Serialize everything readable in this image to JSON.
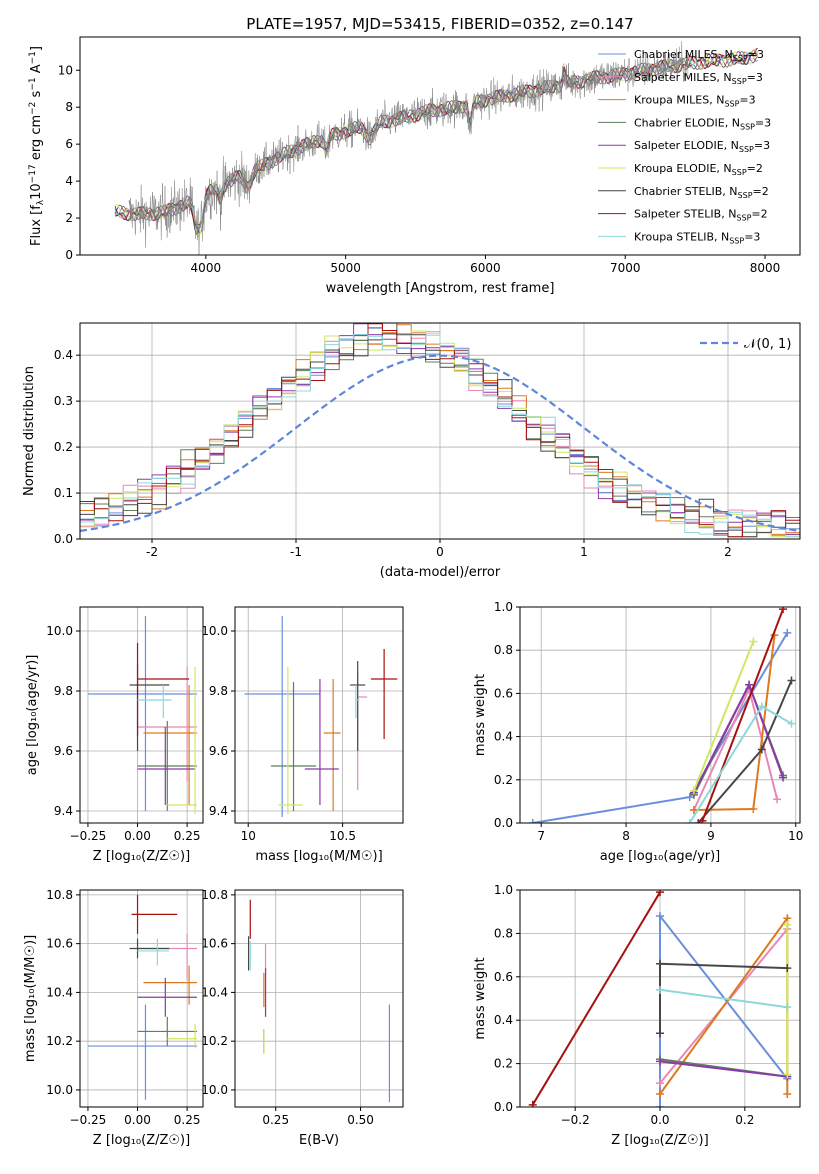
{
  "figure_title": "PLATE=1957, MJD=53415, FIBERID=0352, z=0.147",
  "colors": {
    "Chabrier MILES": "#6a8fdc",
    "Salpeter MILES": "#e888b4",
    "Kroupa MILES": "#dd7a20",
    "Chabrier ELODIE": "#5f7f5f",
    "Salpeter ELODIE": "#8b3aa8",
    "Kroupa ELODIE": "#cfe860",
    "Chabrier STELIB": "#474747",
    "Salpeter STELIB": "#a81010",
    "Kroupa STELIB": "#8cd8dc"
  },
  "chart_data": [
    {
      "id": "spectrum",
      "type": "line",
      "title": "PLATE=1957, MJD=53415, FIBERID=0352, z=0.147",
      "xlabel": "wavelength [Angstrom, rest frame]",
      "ylabel_parts": {
        "a": "Flux [f",
        "b": "λ",
        "c": "10",
        "d": "−17",
        "e": " erg cm",
        "f": "−2",
        "g": " s",
        "h": "−1",
        "i": " A",
        "j": "−1",
        "k": "]"
      },
      "xlim": [
        3100,
        8250
      ],
      "ylim": [
        0,
        11.8
      ],
      "xticks": [
        4000,
        5000,
        6000,
        7000,
        8000
      ],
      "yticks": [
        0,
        2,
        4,
        6,
        8,
        10
      ],
      "legend": [
        {
          "label": "Chabrier MILES, N",
          "sub": "SSP",
          "tail": "=3"
        },
        {
          "label": "Salpeter MILES, N",
          "sub": "SSP",
          "tail": "=3"
        },
        {
          "label": "Kroupa MILES, N",
          "sub": "SSP",
          "tail": "=3"
        },
        {
          "label": "Chabrier ELODIE, N",
          "sub": "SSP",
          "tail": "=3"
        },
        {
          "label": "Salpeter ELODIE, N",
          "sub": "SSP",
          "tail": "=3"
        },
        {
          "label": "Kroupa ELODIE, N",
          "sub": "SSP",
          "tail": "=2"
        },
        {
          "label": "Chabrier STELIB, N",
          "sub": "SSP",
          "tail": "=2"
        },
        {
          "label": "Salpeter STELIB, N",
          "sub": "SSP",
          "tail": "=2"
        },
        {
          "label": "Kroupa STELIB, N",
          "sub": "SSP",
          "tail": "=3"
        }
      ],
      "legend_placement": "upper right",
      "continuum_points": [
        [
          3300,
          2.4
        ],
        [
          3500,
          2.2
        ],
        [
          3700,
          2.3
        ],
        [
          3900,
          2.9
        ],
        [
          4000,
          3.3
        ],
        [
          4200,
          4.1
        ],
        [
          4400,
          4.8
        ],
        [
          4600,
          5.6
        ],
        [
          4800,
          6.2
        ],
        [
          5000,
          6.7
        ],
        [
          5200,
          7.1
        ],
        [
          5400,
          7.4
        ],
        [
          5600,
          7.8
        ],
        [
          5800,
          8.0
        ],
        [
          6000,
          8.4
        ],
        [
          6200,
          8.7
        ],
        [
          6400,
          9.0
        ],
        [
          6600,
          9.3
        ],
        [
          6800,
          9.6
        ],
        [
          7000,
          9.8
        ],
        [
          7200,
          10.1
        ],
        [
          7400,
          10.3
        ],
        [
          7600,
          10.5
        ],
        [
          7800,
          10.6
        ],
        [
          8000,
          10.9
        ]
      ],
      "model_range": [
        3350,
        7950
      ],
      "data_range": [
        3450,
        7450
      ]
    },
    {
      "id": "residual_hist",
      "type": "histogram",
      "xlabel": "(data-model)/error",
      "ylabel": "Normed distribution",
      "xlim": [
        -2.5,
        2.5
      ],
      "ylim": [
        0,
        0.47
      ],
      "xticks": [
        -2,
        -1,
        0,
        1,
        2
      ],
      "yticks": [
        0.0,
        0.1,
        0.2,
        0.3,
        0.4
      ],
      "bin_width": 0.1,
      "legend": "𝒩(0, 1)",
      "legend_placement": "upper right",
      "reference_curve": {
        "name": "𝒩(0, 1)",
        "mean": 0,
        "sigma": 1
      },
      "approx_shape": {
        "peak_center": -0.35,
        "peak_height": 0.42,
        "sigma": 0.92
      }
    },
    {
      "id": "age_vs_Z",
      "type": "errorbar",
      "xlabel": "Z [log₁₀(Z/Z☉)]",
      "ylabel": "age  [log₁₀(age/yr)]",
      "xlim": [
        -0.29,
        0.33
      ],
      "ylim": [
        9.36,
        10.08
      ],
      "xticks": [
        -0.25,
        0.0,
        0.25
      ],
      "xticklabels": [
        "−0.25",
        "0.00",
        "0.25"
      ],
      "yticks": [
        9.4,
        9.6,
        9.8,
        10.0
      ],
      "points": [
        {
          "model": "Chabrier MILES",
          "x": 0.04,
          "xerr": [
            0.29,
            0.26
          ],
          "y": 9.79,
          "yerr": [
            0.39,
            0.26
          ]
        },
        {
          "model": "Salpeter MILES",
          "x": 0.25,
          "xerr": [
            0.25,
            0.05
          ],
          "y": 9.68,
          "yerr": [
            0.18,
            0.2
          ]
        },
        {
          "model": "Kroupa MILES",
          "x": 0.26,
          "xerr": [
            0.23,
            0.04
          ],
          "y": 9.66,
          "yerr": [
            0.24,
            0.16
          ]
        },
        {
          "model": "Chabrier ELODIE",
          "x": 0.15,
          "xerr": [
            0.15,
            0.15
          ],
          "y": 9.55,
          "yerr": [
            0.15,
            0.15
          ]
        },
        {
          "model": "Salpeter ELODIE",
          "x": 0.14,
          "xerr": [
            0.14,
            0.15
          ],
          "y": 9.54,
          "yerr": [
            0.12,
            0.14
          ]
        },
        {
          "model": "Kroupa ELODIE",
          "x": 0.29,
          "xerr": [
            0.14,
            0.01
          ],
          "y": 9.42,
          "yerr": [
            0.03,
            0.46
          ]
        },
        {
          "model": "Chabrier STELIB",
          "x": 0.0,
          "xerr": [
            0.04,
            0.16
          ],
          "y": 9.82,
          "yerr": [
            0.22,
            0.07
          ]
        },
        {
          "model": "Salpeter STELIB",
          "x": 0.0,
          "xerr": [
            0.0,
            0.26
          ],
          "y": 9.84,
          "yerr": [
            0.19,
            0.12
          ]
        },
        {
          "model": "Kroupa STELIB",
          "x": 0.13,
          "xerr": [
            0.13,
            0.04
          ],
          "y": 9.77,
          "yerr": [
            0.06,
            0.05
          ]
        }
      ]
    },
    {
      "id": "age_vs_mass",
      "type": "errorbar",
      "xlabel": "mass [log₁₀(M/M☉)]",
      "ylabel": "",
      "xlim": [
        9.93,
        10.82
      ],
      "ylim": [
        9.36,
        10.08
      ],
      "xticks": [
        10.0,
        10.5
      ],
      "yticks": [
        9.4,
        9.6,
        9.8,
        10.0
      ],
      "points": [
        {
          "model": "Chabrier MILES",
          "x": 10.18,
          "xerr": [
            0.2,
            0.2
          ],
          "y": 9.79,
          "yerr": [
            0.41,
            0.26
          ]
        },
        {
          "model": "Salpeter MILES",
          "x": 10.58,
          "xerr": [
            0.0,
            0.05
          ],
          "y": 9.78,
          "yerr": [
            0.31,
            0.08
          ]
        },
        {
          "model": "Kroupa MILES",
          "x": 10.45,
          "xerr": [
            0.05,
            0.04
          ],
          "y": 9.66,
          "yerr": [
            0.26,
            0.18
          ]
        },
        {
          "model": "Chabrier ELODIE",
          "x": 10.24,
          "xerr": [
            0.12,
            0.12
          ],
          "y": 9.55,
          "yerr": [
            0.15,
            0.28
          ]
        },
        {
          "model": "Salpeter ELODIE",
          "x": 10.38,
          "xerr": [
            0.08,
            0.1
          ],
          "y": 9.54,
          "yerr": [
            0.12,
            0.3
          ]
        },
        {
          "model": "Kroupa ELODIE",
          "x": 10.21,
          "xerr": [
            0.05,
            0.08
          ],
          "y": 9.42,
          "yerr": [
            0.03,
            0.46
          ]
        },
        {
          "model": "Chabrier STELIB",
          "x": 10.58,
          "xerr": [
            0.04,
            0.04
          ],
          "y": 9.82,
          "yerr": [
            0.22,
            0.08
          ]
        },
        {
          "model": "Salpeter STELIB",
          "x": 10.72,
          "xerr": [
            0.07,
            0.07
          ],
          "y": 9.84,
          "yerr": [
            0.2,
            0.1
          ]
        },
        {
          "model": "Kroupa STELIB",
          "x": 10.57,
          "xerr": [
            0.0,
            0.02
          ],
          "y": 9.77,
          "yerr": [
            0.06,
            0.05
          ]
        }
      ]
    },
    {
      "id": "weight_vs_age",
      "type": "line",
      "xlabel": "age  [log₁₀(age/yr)]",
      "ylabel": "mass weight",
      "xlim": [
        6.75,
        10.05
      ],
      "ylim": [
        0,
        1
      ],
      "xticks": [
        7,
        8,
        9,
        10
      ],
      "yticks": [
        0.0,
        0.2,
        0.4,
        0.6,
        0.8,
        1.0
      ],
      "series": [
        {
          "model": "Chabrier MILES",
          "x": [
            6.9,
            8.75,
            9.9
          ],
          "y": [
            0.0,
            0.12,
            0.88
          ]
        },
        {
          "model": "Salpeter MILES",
          "x": [
            8.8,
            9.45,
            9.78
          ],
          "y": [
            0.06,
            0.62,
            0.11
          ]
        },
        {
          "model": "Kroupa MILES",
          "x": [
            8.8,
            9.5,
            9.75
          ],
          "y": [
            0.06,
            0.065,
            0.87
          ]
        },
        {
          "model": "Chabrier ELODIE",
          "x": [
            8.8,
            9.45,
            9.85
          ],
          "y": [
            0.13,
            0.64,
            0.22
          ]
        },
        {
          "model": "Salpeter ELODIE",
          "x": [
            8.8,
            9.45,
            9.85
          ],
          "y": [
            0.14,
            0.64,
            0.21
          ]
        },
        {
          "model": "Kroupa ELODIE",
          "x": [
            8.8,
            9.5
          ],
          "y": [
            0.15,
            0.84
          ]
        },
        {
          "model": "Chabrier STELIB",
          "x": [
            8.85,
            9.6,
            9.95
          ],
          "y": [
            0.0,
            0.34,
            0.66
          ]
        },
        {
          "model": "Salpeter STELIB",
          "x": [
            8.9,
            9.85
          ],
          "y": [
            0.01,
            0.99
          ]
        },
        {
          "model": "Kroupa STELIB",
          "x": [
            8.75,
            9.6,
            9.95
          ],
          "y": [
            0.0,
            0.54,
            0.46
          ]
        }
      ]
    },
    {
      "id": "mass_vs_Z",
      "type": "errorbar",
      "xlabel": "Z [log₁₀(Z/Z☉)]",
      "ylabel": "mass [log₁₀(M/M☉)]",
      "xlim": [
        -0.29,
        0.33
      ],
      "ylim": [
        9.93,
        10.82
      ],
      "xticks": [
        -0.25,
        0.0,
        0.25
      ],
      "xticklabels": [
        "−0.25",
        "0.00",
        "0.25"
      ],
      "yticks": [
        10.0,
        10.2,
        10.4,
        10.6,
        10.8
      ],
      "points": [
        {
          "model": "Chabrier MILES",
          "x": 0.04,
          "xerr": [
            0.29,
            0.26
          ],
          "y": 10.18,
          "yerr": [
            0.22,
            0.17
          ]
        },
        {
          "model": "Salpeter MILES",
          "x": 0.25,
          "xerr": [
            0.25,
            0.05
          ],
          "y": 10.58,
          "yerr": [
            0.13,
            0.06
          ]
        },
        {
          "model": "Kroupa MILES",
          "x": 0.26,
          "xerr": [
            0.23,
            0.04
          ],
          "y": 10.44,
          "yerr": [
            0.09,
            0.07
          ]
        },
        {
          "model": "Chabrier ELODIE",
          "x": 0.15,
          "xerr": [
            0.15,
            0.15
          ],
          "y": 10.24,
          "yerr": [
            0.06,
            0.06
          ]
        },
        {
          "model": "Salpeter ELODIE",
          "x": 0.14,
          "xerr": [
            0.14,
            0.16
          ],
          "y": 10.38,
          "yerr": [
            0.08,
            0.08
          ]
        },
        {
          "model": "Kroupa ELODIE",
          "x": 0.29,
          "xerr": [
            0.14,
            0.01
          ],
          "y": 10.21,
          "yerr": [
            0.04,
            0.06
          ]
        },
        {
          "model": "Chabrier STELIB",
          "x": 0.0,
          "xerr": [
            0.04,
            0.16
          ],
          "y": 10.58,
          "yerr": [
            0.04,
            0.04
          ]
        },
        {
          "model": "Salpeter STELIB",
          "x": 0.0,
          "xerr": [
            0.03,
            0.2
          ],
          "y": 10.72,
          "yerr": [
            0.08,
            0.08
          ]
        },
        {
          "model": "Kroupa STELIB",
          "x": 0.1,
          "xerr": [
            0.1,
            0.06
          ],
          "y": 10.57,
          "yerr": [
            0.06,
            0.05
          ]
        }
      ]
    },
    {
      "id": "mass_vs_ebv",
      "type": "errorbar",
      "xlabel": "E(B-V)",
      "ylabel": "",
      "xlim": [
        0.13,
        0.625
      ],
      "ylim": [
        9.93,
        10.82
      ],
      "xticks": [
        0.25,
        0.5
      ],
      "xticklabels": [
        "0.25",
        "0.50"
      ],
      "yticks": [
        10.0,
        10.2,
        10.4,
        10.6,
        10.8
      ],
      "points": [
        {
          "model": "Chabrier MILES",
          "x": 0.585,
          "xerr": [
            0,
            0
          ],
          "y": 10.15,
          "yerr": [
            0.2,
            0.2
          ]
        },
        {
          "model": "Salpeter MILES",
          "x": 0.22,
          "xerr": [
            0,
            0
          ],
          "y": 10.45,
          "yerr": [
            0.15,
            0.15
          ]
        },
        {
          "model": "Kroupa MILES",
          "x": 0.215,
          "xerr": [
            0,
            0
          ],
          "y": 10.41,
          "yerr": [
            0.07,
            0.07
          ]
        },
        {
          "model": "Chabrier ELODIE",
          "x": 0.215,
          "xerr": [
            0,
            0
          ],
          "y": 10.2,
          "yerr": [
            0.05,
            0.05
          ]
        },
        {
          "model": "Salpeter ELODIE",
          "x": 0.22,
          "xerr": [
            0,
            0
          ],
          "y": 10.4,
          "yerr": [
            0.1,
            0.1
          ]
        },
        {
          "model": "Kroupa ELODIE",
          "x": 0.215,
          "xerr": [
            0,
            0
          ],
          "y": 10.2,
          "yerr": [
            0.05,
            0.05
          ]
        },
        {
          "model": "Chabrier STELIB",
          "x": 0.17,
          "xerr": [
            0,
            0
          ],
          "y": 10.56,
          "yerr": [
            0.07,
            0.07
          ]
        },
        {
          "model": "Salpeter STELIB",
          "x": 0.175,
          "xerr": [
            0,
            0
          ],
          "y": 10.7,
          "yerr": [
            0.08,
            0.08
          ]
        },
        {
          "model": "Kroupa STELIB",
          "x": 0.175,
          "xerr": [
            0,
            0
          ],
          "y": 10.55,
          "yerr": [
            0.06,
            0.06
          ]
        }
      ]
    },
    {
      "id": "weight_vs_Z",
      "type": "line",
      "xlabel": "Z [log₁₀(Z/Z☉)]",
      "ylabel": "mass weight",
      "xlim": [
        -0.33,
        0.33
      ],
      "ylim": [
        0,
        1
      ],
      "xticks": [
        -0.2,
        0.0,
        0.2
      ],
      "xticklabels": [
        "−0.2",
        "0.0",
        "0.2"
      ],
      "yticks": [
        0.0,
        0.2,
        0.4,
        0.6,
        0.8,
        1.0
      ],
      "series": [
        {
          "model": "Chabrier MILES",
          "x": [
            0.0,
            0.0,
            0.3
          ],
          "y": [
            0.0,
            0.88,
            0.13
          ]
        },
        {
          "model": "Salpeter MILES",
          "x": [
            0.0,
            0.3
          ],
          "y": [
            0.11,
            0.82
          ]
        },
        {
          "model": "Kroupa MILES",
          "x": [
            0.0,
            0.3,
            0.3
          ],
          "y": [
            0.06,
            0.87,
            0.06
          ]
        },
        {
          "model": "Chabrier ELODIE",
          "x": [
            0.0,
            0.3
          ],
          "y": [
            0.22,
            0.14
          ]
        },
        {
          "model": "Salpeter ELODIE",
          "x": [
            0.0,
            0.3
          ],
          "y": [
            0.21,
            0.14
          ]
        },
        {
          "model": "Kroupa ELODIE",
          "x": [
            0.3,
            0.3
          ],
          "y": [
            0.15,
            0.84
          ]
        },
        {
          "model": "Chabrier STELIB",
          "x": [
            0.0,
            0.0,
            0.3
          ],
          "y": [
            0.34,
            0.66,
            0.64
          ]
        },
        {
          "model": "Salpeter STELIB",
          "x": [
            -0.3,
            0.0
          ],
          "y": [
            0.01,
            0.99
          ]
        },
        {
          "model": "Kroupa STELIB",
          "x": [
            0.0,
            0.3
          ],
          "y": [
            0.54,
            0.46
          ]
        }
      ]
    }
  ]
}
